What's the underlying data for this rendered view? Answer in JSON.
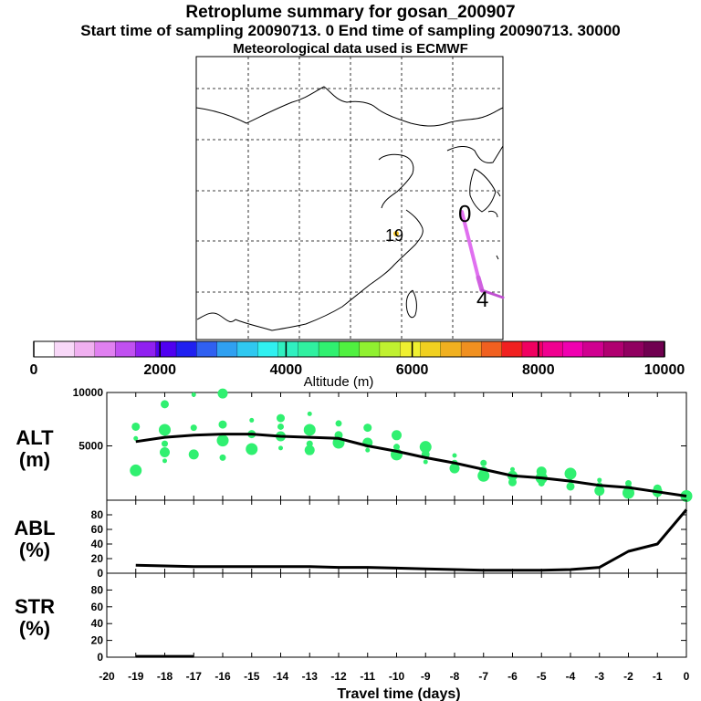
{
  "title": "Retroplume summary for gosan_200907",
  "subtitle": "Start time of sampling 20090713.     0     End time of sampling 20090713. 30000",
  "subtitle2": "Meteorological data used is ECMWF",
  "map": {
    "labels": [
      {
        "text": "0",
        "lon_frac": 0.88,
        "lat_frac": 0.57
      },
      {
        "text": "19",
        "lon_frac": 0.65,
        "lat_frac": 0.66
      },
      {
        "text": "4",
        "lon_frac": 0.945,
        "lat_frac": 0.85
      }
    ]
  },
  "colorbar": {
    "label": "Altitude (m)",
    "ticks": [
      "0",
      "2000",
      "4000",
      "6000",
      "8000",
      "10000"
    ],
    "colors": [
      "#ffffff",
      "#f8d8f8",
      "#f0b0f0",
      "#e080f0",
      "#c050f0",
      "#9020f0",
      "#5000f0",
      "#2020f0",
      "#3060f0",
      "#30a0f0",
      "#30c8f0",
      "#30f0f0",
      "#30f0c0",
      "#30f0a0",
      "#30f070",
      "#50f040",
      "#90f030",
      "#c0f030",
      "#f0f030",
      "#f0d020",
      "#f0b020",
      "#f09020",
      "#f06020",
      "#f02020",
      "#f00060",
      "#f00090",
      "#f000b0",
      "#d00090",
      "#b00070",
      "#900060",
      "#700050"
    ]
  },
  "chart_data": [
    {
      "type": "line",
      "name": "ALT",
      "ylabel": "ALT\n(m)",
      "ylabel_line1": "ALT",
      "ylabel_line2": "(m)",
      "ylim": [
        0,
        10000
      ],
      "yticks": [
        "10000",
        "5000"
      ],
      "x": [
        -19,
        -18,
        -17,
        -16,
        -15,
        -14,
        -13,
        -12,
        -11,
        -10,
        -9,
        -8,
        -7,
        -6,
        -5,
        -4,
        -3,
        -2,
        -1,
        0
      ],
      "values": [
        5400,
        5800,
        6000,
        6100,
        6100,
        5900,
        5800,
        5700,
        5000,
        4500,
        3900,
        3400,
        2800,
        2200,
        2000,
        1700,
        1300,
        1100,
        700,
        300
      ],
      "scatter_points": [
        [
          -19,
          5700
        ],
        [
          -19,
          6800
        ],
        [
          -19,
          2700
        ],
        [
          -18,
          5200
        ],
        [
          -18,
          4400
        ],
        [
          -18,
          3600
        ],
        [
          -18,
          8900
        ],
        [
          -18,
          6500
        ],
        [
          -17,
          6700
        ],
        [
          -17,
          4200
        ],
        [
          -17,
          9800
        ],
        [
          -16,
          7000
        ],
        [
          -16,
          5500
        ],
        [
          -16,
          3900
        ],
        [
          -16,
          9900
        ],
        [
          -15,
          7400
        ],
        [
          -15,
          6100
        ],
        [
          -15,
          4700
        ],
        [
          -14,
          6800
        ],
        [
          -14,
          5900
        ],
        [
          -14,
          4800
        ],
        [
          -14,
          7600
        ],
        [
          -13,
          6500
        ],
        [
          -13,
          5200
        ],
        [
          -13,
          4600
        ],
        [
          -13,
          8000
        ],
        [
          -12,
          6000
        ],
        [
          -12,
          5300
        ],
        [
          -12,
          7100
        ],
        [
          -11,
          5300
        ],
        [
          -11,
          4600
        ],
        [
          -11,
          6700
        ],
        [
          -10,
          4200
        ],
        [
          -10,
          4900
        ],
        [
          -10,
          6000
        ],
        [
          -9,
          3500
        ],
        [
          -9,
          4200
        ],
        [
          -9,
          4900
        ],
        [
          -8,
          3400
        ],
        [
          -8,
          2900
        ],
        [
          -8,
          4100
        ],
        [
          -7,
          2700
        ],
        [
          -7,
          2200
        ],
        [
          -7,
          3400
        ],
        [
          -6,
          2200
        ],
        [
          -6,
          2800
        ],
        [
          -6,
          1600
        ],
        [
          -5,
          2000
        ],
        [
          -5,
          1500
        ],
        [
          -5,
          2600
        ],
        [
          -4,
          1700
        ],
        [
          -4,
          1200
        ],
        [
          -4,
          2400
        ],
        [
          -3,
          1300
        ],
        [
          -3,
          800
        ],
        [
          -3,
          1800
        ],
        [
          -2,
          1000
        ],
        [
          -2,
          600
        ],
        [
          -2,
          1500
        ],
        [
          -1,
          700
        ],
        [
          -1,
          400
        ],
        [
          -1,
          1000
        ],
        [
          0,
          300
        ]
      ]
    },
    {
      "type": "line",
      "name": "ABL",
      "ylabel_line1": "ABL",
      "ylabel_line2": "(%)",
      "ylim": [
        0,
        100
      ],
      "yticks": [
        "80",
        "60",
        "40",
        "20",
        "0"
      ],
      "x": [
        -19,
        -18,
        -17,
        -16,
        -15,
        -14,
        -13,
        -12,
        -11,
        -10,
        -9,
        -8,
        -7,
        -6,
        -5,
        -4,
        -3,
        -2,
        -1,
        0
      ],
      "values": [
        11,
        10,
        9,
        9,
        9,
        9,
        9,
        8,
        8,
        7,
        6,
        5,
        4,
        4,
        4,
        5,
        8,
        30,
        40,
        87
      ]
    },
    {
      "type": "line",
      "name": "STR",
      "ylabel_line1": "STR",
      "ylabel_line2": "(%)",
      "ylim": [
        0,
        100
      ],
      "yticks": [
        "80",
        "60",
        "40",
        "20",
        "0"
      ],
      "x": [
        -19,
        -18,
        -17
      ],
      "values": [
        1,
        1,
        1
      ]
    }
  ],
  "xaxis": {
    "label": "Travel time (days)",
    "ticks": [
      "-20",
      "-19",
      "-18",
      "-17",
      "-16",
      "-15",
      "-14",
      "-13",
      "-12",
      "-11",
      "-10",
      "-9",
      "-8",
      "-7",
      "-6",
      "-5",
      "-4",
      "-3",
      "-2",
      "-1",
      "0"
    ],
    "xlim": [
      -20,
      0
    ]
  }
}
